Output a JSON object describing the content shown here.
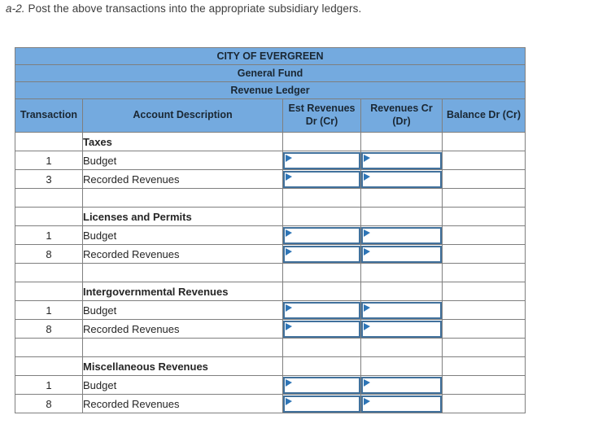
{
  "instruction": {
    "prefix": "a-2.",
    "text": " Post the above transactions into the appropriate subsidiary ledgers."
  },
  "table": {
    "titles": [
      "CITY OF EVERGREEN",
      "General Fund",
      "Revenue Ledger"
    ],
    "columns": [
      "Transaction",
      "Account Description",
      "Est Revenues Dr (Cr)",
      "Revenues Cr (Dr)",
      "Balance Dr (Cr)"
    ],
    "sections": [
      {
        "name": "Taxes",
        "entries": [
          {
            "transaction": "1",
            "description": "Budget",
            "est_revenues": "",
            "revenues_cr": "",
            "balance": ""
          },
          {
            "transaction": "3",
            "description": "Recorded Revenues",
            "est_revenues": "",
            "revenues_cr": "",
            "balance": ""
          }
        ]
      },
      {
        "name": "Licenses and Permits",
        "entries": [
          {
            "transaction": "1",
            "description": "Budget",
            "est_revenues": "",
            "revenues_cr": "",
            "balance": ""
          },
          {
            "transaction": "8",
            "description": "Recorded Revenues",
            "est_revenues": "",
            "revenues_cr": "",
            "balance": ""
          }
        ]
      },
      {
        "name": "Intergovernmental Revenues",
        "entries": [
          {
            "transaction": "1",
            "description": "Budget",
            "est_revenues": "",
            "revenues_cr": "",
            "balance": ""
          },
          {
            "transaction": "8",
            "description": "Recorded Revenues",
            "est_revenues": "",
            "revenues_cr": "",
            "balance": ""
          }
        ]
      },
      {
        "name": "Miscellaneous Revenues",
        "entries": [
          {
            "transaction": "1",
            "description": "Budget",
            "est_revenues": "",
            "revenues_cr": "",
            "balance": ""
          },
          {
            "transaction": "8",
            "description": "Recorded Revenues",
            "est_revenues": "",
            "revenues_cr": "",
            "balance": ""
          }
        ]
      }
    ]
  },
  "colors": {
    "header_blue": "#74aadf",
    "grid_border": "#7f7f7f",
    "input_border": "#41719c",
    "input_marker": "#2e75b6"
  }
}
